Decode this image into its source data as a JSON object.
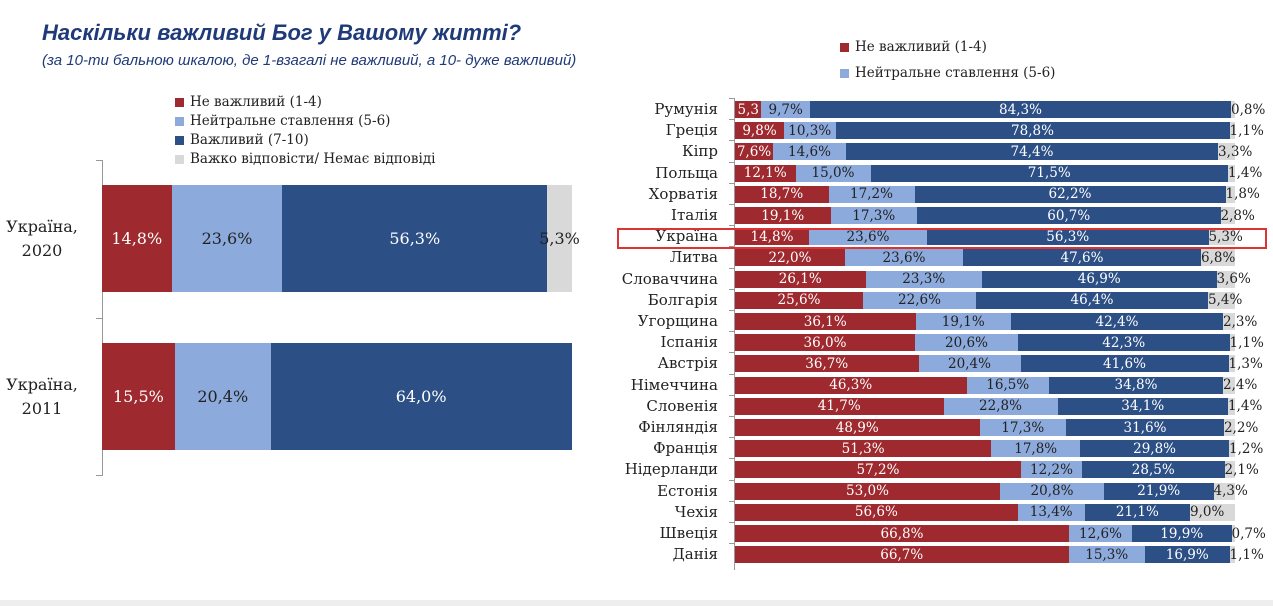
{
  "title": "Наскільки важливий Бог у Вашому житті?",
  "subtitle": "(за 10-ти бальною шкалою, де 1-взагалі не важливий, а 10- дуже важливий)",
  "chart_data": [
    {
      "type": "bar",
      "stacked": true,
      "orientation": "horizontal",
      "legend": [
        "Не важливий (1-4)",
        "Нейтральне ставлення (5-6)",
        "Важливий (7-10)",
        "Важко відповісти/ Немає відповіді"
      ],
      "colors": [
        "#9e2a2f",
        "#8caadc",
        "#2c4f85",
        "#d9d9d9"
      ],
      "categories": [
        "Україна, 2020",
        "Україна, 2011"
      ],
      "series": [
        {
          "name": "Не важливий (1-4)",
          "values": [
            14.8,
            15.5
          ]
        },
        {
          "name": "Нейтральне ставлення (5-6)",
          "values": [
            23.6,
            20.4
          ]
        },
        {
          "name": "Важливий (7-10)",
          "values": [
            56.3,
            64.0
          ]
        },
        {
          "name": "Важко відповісти/ Немає відповіді",
          "values": [
            5.3,
            null
          ]
        }
      ],
      "labels": [
        [
          "14,8%",
          "23,6%",
          "56,3%",
          "5,3%"
        ],
        [
          "15,5%",
          "20,4%",
          "64,0%",
          ""
        ]
      ]
    },
    {
      "type": "bar",
      "stacked": true,
      "orientation": "horizontal",
      "legend": [
        "Не важливий (1-4)",
        "Нейтральне ставлення (5-6)"
      ],
      "highlight": "Україна",
      "categories": [
        "Румунія",
        "Греція",
        "Кіпр",
        "Польща",
        "Хорватія",
        "Італія",
        "Україна",
        "Литва",
        "Словаччина",
        "Болгарія",
        "Угорщина",
        "Іспанія",
        "Австрія",
        "Німеччина",
        "Словенія",
        "Фінляндія",
        "Франція",
        "Нідерланди",
        "Естонія",
        "Чехія",
        "Швеція",
        "Данія"
      ],
      "values": [
        [
          5.3,
          9.7,
          84.3,
          0.8
        ],
        [
          9.8,
          10.3,
          78.8,
          1.1
        ],
        [
          7.6,
          14.6,
          74.4,
          3.3
        ],
        [
          12.1,
          15.0,
          71.5,
          1.4
        ],
        [
          18.7,
          17.2,
          62.2,
          1.8
        ],
        [
          19.1,
          17.3,
          60.7,
          2.8
        ],
        [
          14.8,
          23.6,
          56.3,
          5.3
        ],
        [
          22.0,
          23.6,
          47.6,
          6.8
        ],
        [
          26.1,
          23.3,
          46.9,
          3.6
        ],
        [
          25.6,
          22.6,
          46.4,
          5.4
        ],
        [
          36.1,
          19.1,
          42.4,
          2.3
        ],
        [
          36.0,
          20.6,
          42.3,
          1.1
        ],
        [
          36.7,
          20.4,
          41.6,
          1.3
        ],
        [
          46.3,
          16.5,
          34.8,
          2.4
        ],
        [
          41.7,
          22.8,
          34.1,
          1.4
        ],
        [
          48.9,
          17.3,
          31.6,
          2.2
        ],
        [
          51.3,
          17.8,
          29.8,
          1.2
        ],
        [
          57.2,
          12.2,
          28.5,
          2.1
        ],
        [
          53.0,
          20.8,
          21.9,
          4.3
        ],
        [
          56.6,
          13.4,
          21.1,
          9.0
        ],
        [
          66.8,
          12.6,
          19.9,
          0.7
        ],
        [
          66.7,
          15.3,
          16.9,
          1.1
        ]
      ],
      "labels": [
        [
          "5,3",
          "9,7%",
          "84,3%",
          "0,8%"
        ],
        [
          "9,8%",
          "10,3%",
          "78,8%",
          "1,1%"
        ],
        [
          "7,6%",
          "14,6%",
          "74,4%",
          "3,3%"
        ],
        [
          "12,1%",
          "15,0%",
          "71,5%",
          "1,4%"
        ],
        [
          "18,7%",
          "17,2%",
          "62,2%",
          "1,8%"
        ],
        [
          "19,1%",
          "17,3%",
          "60,7%",
          "2,8%"
        ],
        [
          "14,8%",
          "23,6%",
          "56,3%",
          "5,3%"
        ],
        [
          "22,0%",
          "23,6%",
          "47,6%",
          "6,8%"
        ],
        [
          "26,1%",
          "23,3%",
          "46,9%",
          "3,6%"
        ],
        [
          "25,6%",
          "22,6%",
          "46,4%",
          "5,4%"
        ],
        [
          "36,1%",
          "19,1%",
          "42,4%",
          "2,3%"
        ],
        [
          "36,0%",
          "20,6%",
          "42,3%",
          "1,1%"
        ],
        [
          "36,7%",
          "20,4%",
          "41,6%",
          "1,3%"
        ],
        [
          "46,3%",
          "16,5%",
          "34,8%",
          "2,4%"
        ],
        [
          "41,7%",
          "22,8%",
          "34,1%",
          "1,4%"
        ],
        [
          "48,9%",
          "17,3%",
          "31,6%",
          "2,2%"
        ],
        [
          "51,3%",
          "17,8%",
          "29,8%",
          "1,2%"
        ],
        [
          "57,2%",
          "12,2%",
          "28,5%",
          "2,1%"
        ],
        [
          "53,0%",
          "20,8%",
          "21,9%",
          "4,3%"
        ],
        [
          "56,6%",
          "13,4%",
          "21,1%",
          "9,0%"
        ],
        [
          "66,8%",
          "12,6%",
          "19,9%",
          "0,7%"
        ],
        [
          "66,7%",
          "15,3%",
          "16,9%",
          "1,1%"
        ]
      ]
    }
  ]
}
